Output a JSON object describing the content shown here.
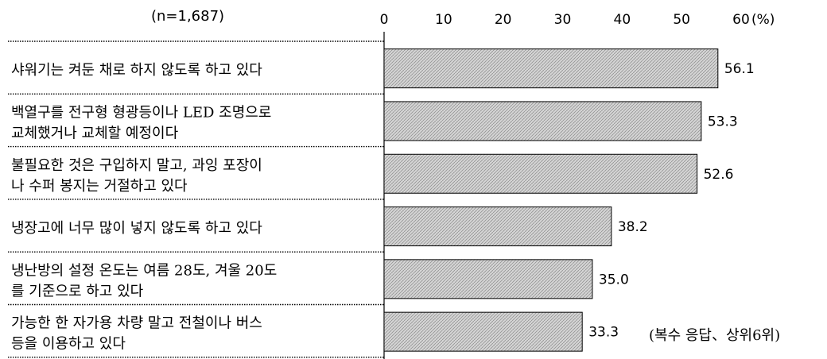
{
  "chart_data": {
    "type": "bar",
    "orientation": "horizontal",
    "sample_note": "(n=1,687)",
    "unit_label": "(%)",
    "footnote": "(복수 응답、상위6위)",
    "xlim": [
      0,
      60
    ],
    "ticks": [
      "0",
      "10",
      "20",
      "30",
      "40",
      "50",
      "60"
    ],
    "grid": false,
    "categories": [
      [
        "샤워기는 켜둔 채로 하지 않도록 하고 있다"
      ],
      [
        "백열구를 전구형 형광등이나 LED 조명으로",
        "교체했거나 교체할 예정이다"
      ],
      [
        "불필요한 것은 구입하지 말고, 과잉 포장이",
        "나 수퍼 봉지는 거절하고 있다"
      ],
      [
        "냉장고에 너무 많이 넣지 않도록 하고 있다"
      ],
      [
        "냉난방의 설정 온도는 여름 28도, 겨울 20도",
        "를 기준으로 하고 있다"
      ],
      [
        "가능한 한 자가용 차량 말고 전철이나 버스",
        "등을 이용하고 있다"
      ]
    ],
    "values": [
      56.1,
      53.3,
      52.6,
      38.2,
      35.0,
      33.3
    ],
    "value_labels": [
      "56.1",
      "53.3",
      "52.6",
      "38.2",
      "35.0",
      "33.3"
    ]
  }
}
